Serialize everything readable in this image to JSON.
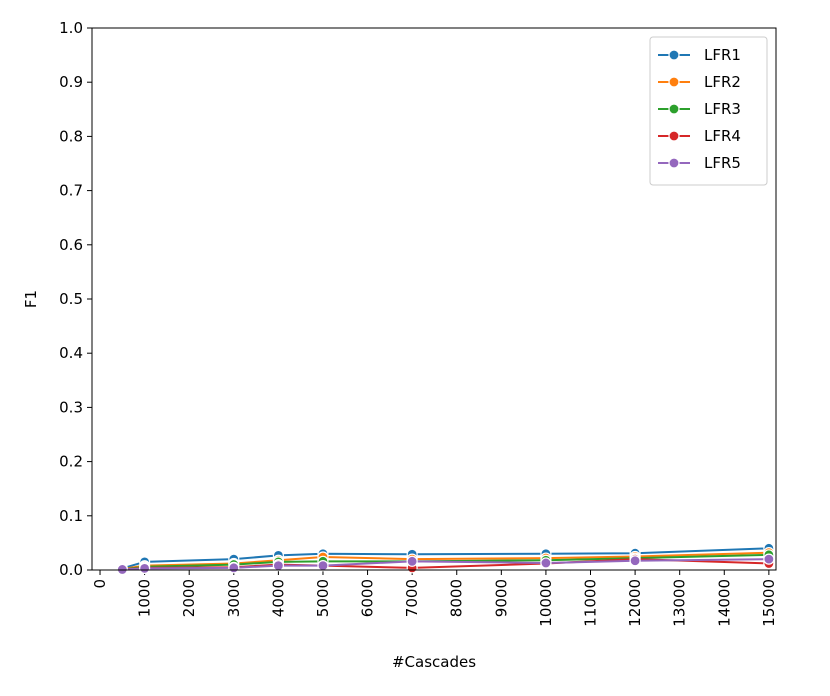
{
  "chart_data": {
    "type": "line",
    "xlabel": "#Cascades",
    "ylabel": "F1",
    "x": [
      500,
      1000,
      3000,
      4000,
      5000,
      7000,
      10000,
      12000,
      15000
    ],
    "series": [
      {
        "name": "LFR1",
        "color": "#1f77b4",
        "values": [
          0.003,
          0.015,
          0.02,
          0.027,
          0.03,
          0.029,
          0.03,
          0.031,
          0.04
        ]
      },
      {
        "name": "LFR2",
        "color": "#ff7f0e",
        "values": [
          0.002,
          0.008,
          0.012,
          0.018,
          0.024,
          0.02,
          0.022,
          0.025,
          0.032
        ]
      },
      {
        "name": "LFR3",
        "color": "#2ca02c",
        "values": [
          0.001,
          0.006,
          0.01,
          0.015,
          0.016,
          0.016,
          0.018,
          0.022,
          0.028
        ]
      },
      {
        "name": "LFR4",
        "color": "#d62728",
        "values": [
          0.001,
          0.004,
          0.005,
          0.01,
          0.008,
          0.004,
          0.012,
          0.02,
          0.012
        ]
      },
      {
        "name": "LFR5",
        "color": "#9467bd",
        "values": [
          0.001,
          0.003,
          0.004,
          0.008,
          0.008,
          0.016,
          0.013,
          0.017,
          0.02
        ]
      }
    ],
    "xlim": [
      -180,
      15160
    ],
    "xticks": [
      0,
      1000,
      2000,
      3000,
      4000,
      5000,
      6000,
      7000,
      8000,
      9000,
      10000,
      11000,
      12000,
      13000,
      14000,
      15000
    ],
    "ylim": [
      0,
      1
    ],
    "yticks": [
      {
        "value": 0,
        "label": "0.0"
      },
      0.1,
      0.2,
      0.3,
      0.4,
      0.5,
      0.6,
      0.7,
      0.8,
      0.9,
      {
        "value": 1,
        "label": "1.0"
      }
    ],
    "legend": "upper right",
    "grid": false
  }
}
